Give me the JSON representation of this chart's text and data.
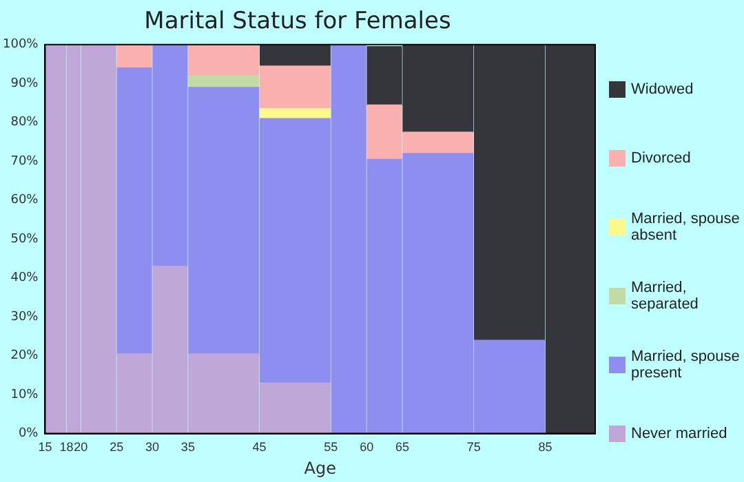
{
  "chart_data": {
    "type": "bar",
    "stacked": true,
    "title": "Marital Status for Females",
    "xlabel": "Age",
    "x": [
      16.5,
      19,
      22.5,
      27.5,
      32.5,
      40,
      50,
      57.5,
      62.5,
      70,
      80,
      88.5
    ],
    "xlim": [
      15,
      92
    ],
    "xticks": [
      15,
      18,
      20,
      25,
      30,
      35,
      45,
      55,
      60,
      65,
      75,
      85
    ],
    "ylim": [
      0,
      100
    ],
    "yticks": [
      {
        "value": 0,
        "label": "0%"
      },
      {
        "value": 10,
        "label": "10%"
      },
      {
        "value": 20,
        "label": "20%"
      },
      {
        "value": 30,
        "label": "30%"
      },
      {
        "value": 40,
        "label": "40%"
      },
      {
        "value": 50,
        "label": "50%"
      },
      {
        "value": 60,
        "label": "60%"
      },
      {
        "value": 70,
        "label": "70%"
      },
      {
        "value": 80,
        "label": "80%"
      },
      {
        "value": 90,
        "label": "90%"
      },
      {
        "value": 100,
        "label": "100%"
      }
    ],
    "grid": false,
    "legend": "right",
    "series": [
      {
        "name": "Never married",
        "color": "#bfa8d8",
        "values": [
          100,
          100,
          100,
          20.5,
          43,
          20.5,
          13,
          0,
          0,
          0,
          0,
          0
        ]
      },
      {
        "name": "Married, spouse present",
        "color": "#8e8ef0",
        "values": [
          0,
          0,
          0,
          73.5,
          57,
          68.5,
          68,
          100,
          70.5,
          72,
          24,
          0
        ]
      },
      {
        "name": "Married, separated",
        "color": "#c2dba4",
        "values": [
          0,
          0,
          0,
          0,
          0,
          3,
          0,
          0,
          0,
          0,
          0,
          0
        ]
      },
      {
        "name": "Married, spouse absent",
        "color": "#fff88c",
        "values": [
          0,
          0,
          0,
          0,
          0,
          0,
          2.5,
          0,
          0,
          0,
          0,
          0
        ]
      },
      {
        "name": "Divorced",
        "color": "#f9b0ae",
        "values": [
          0,
          0,
          0,
          6,
          0,
          8,
          11,
          0,
          14,
          5.5,
          0,
          0
        ]
      },
      {
        "name": "Widowed",
        "color": "#35363c",
        "values": [
          0,
          0,
          0,
          0,
          0,
          0,
          5.5,
          0,
          15,
          22.5,
          76,
          100
        ]
      }
    ]
  }
}
